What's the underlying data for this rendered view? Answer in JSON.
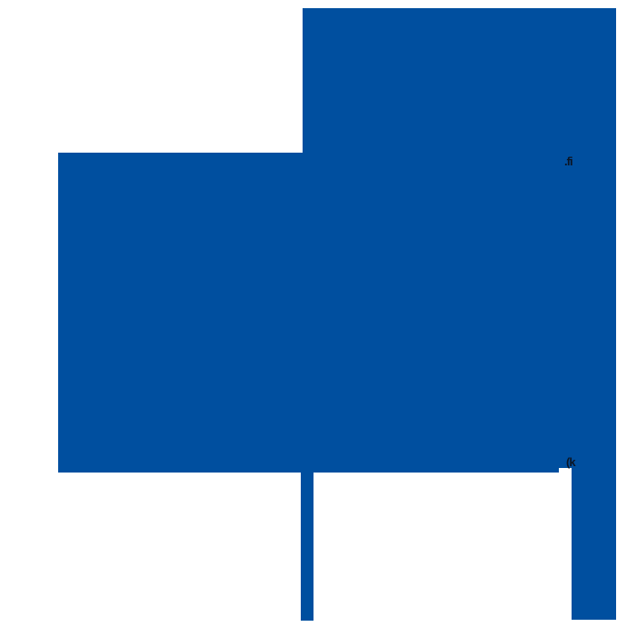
{
  "canvas": {
    "background": "#ffffff",
    "accent_blue": "#004F9F",
    "artifact_ink": "#0b1524"
  },
  "artifacts": {
    "top_glyph": ".fi",
    "bottom_glyph": "(k"
  }
}
